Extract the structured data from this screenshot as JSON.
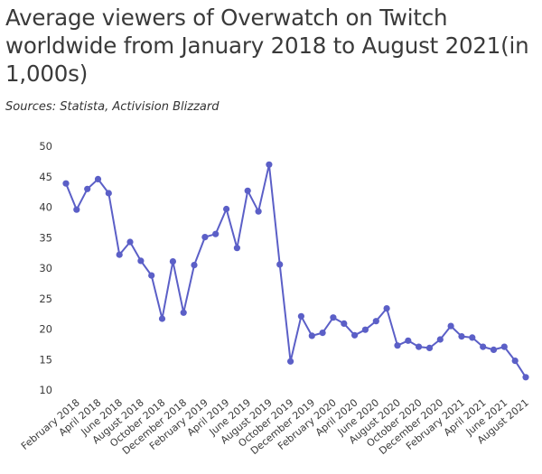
{
  "title": "Average viewers of Overwatch on Twitch worldwide from January 2018 to August 2021(in 1,000s)",
  "source": "Sources: Statista, Activision Blizzard",
  "colors": {
    "line": "#5b5fc7",
    "text": "#3a3a3a"
  },
  "chart_data": {
    "type": "line",
    "title": "Average viewers of Overwatch on Twitch worldwide from January 2018 to August 2021(in 1,000s)",
    "xlabel": "",
    "ylabel": "",
    "ylim": [
      10,
      50
    ],
    "yticks": [
      50,
      45,
      40,
      35,
      30,
      25,
      20,
      15,
      10
    ],
    "grid": false,
    "x": [
      "January 2018",
      "February 2018",
      "March 2018",
      "April 2018",
      "May 2018",
      "June 2018",
      "July 2018",
      "August 2018",
      "September 2018",
      "October 2018",
      "November 2018",
      "December 2018",
      "January 2019",
      "February 2019",
      "March 2019",
      "April 2019",
      "May 2019",
      "June 2019",
      "July 2019",
      "August 2019",
      "September 2019",
      "October 2019",
      "November 2019",
      "December 2019",
      "January 2020",
      "February 2020",
      "March 2020",
      "April 2020",
      "May 2020",
      "June 2020",
      "July 2020",
      "August 2020",
      "September 2020",
      "October 2020",
      "November 2020",
      "December 2020",
      "January 2021",
      "February 2021",
      "March 2021",
      "April 2021",
      "May 2021",
      "June 2021",
      "July 2021",
      "August 2021"
    ],
    "x_tick_labels": [
      "February 2018",
      "April 2018",
      "June 2018",
      "August 2018",
      "October 2018",
      "December 2018",
      "February 2019",
      "April 2019",
      "June 2019",
      "August 2019",
      "October 2019",
      "December 2019",
      "February 2020",
      "April 2020",
      "June 2020",
      "August 2020",
      "October 2020",
      "December 2020",
      "February 2021",
      "April 2021",
      "June 2021",
      "August 2021"
    ],
    "series": [
      {
        "name": "Average viewers (in 1,000s)",
        "values": [
          43.9,
          39.6,
          43,
          44.6,
          42.3,
          32.2,
          34.3,
          31.2,
          28.8,
          21.7,
          31.1,
          22.7,
          30.5,
          35.1,
          35.6,
          39.7,
          33.3,
          42.7,
          39.3,
          47,
          30.6,
          14.7,
          22.1,
          18.9,
          19.4,
          21.9,
          20.9,
          19,
          19.9,
          21.3,
          23.4,
          17.3,
          18.1,
          17.1,
          16.9,
          18.3,
          20.5,
          18.8,
          18.6,
          17.1,
          16.6,
          17.1,
          14.8,
          12.1
        ]
      }
    ]
  }
}
